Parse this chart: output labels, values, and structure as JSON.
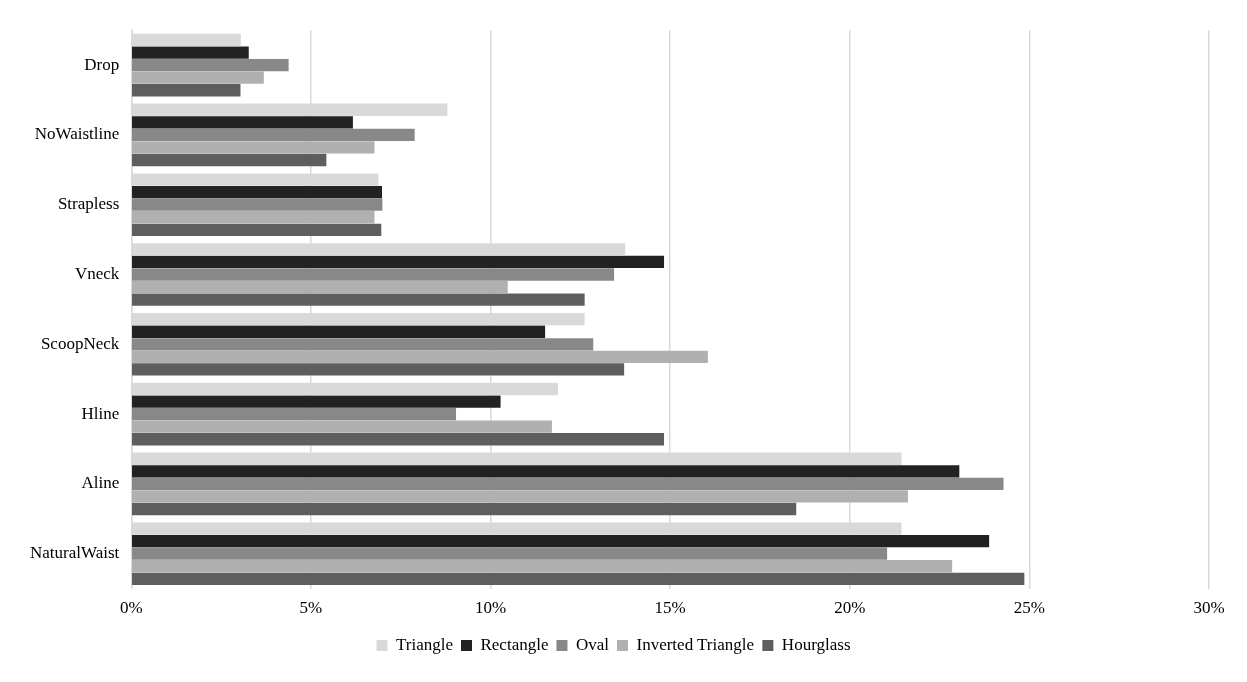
{
  "chart_data": {
    "type": "bar",
    "orientation": "horizontal",
    "categories": [
      "Drop",
      "NoWaistline",
      "Strapless",
      "Vneck",
      "ScoopNeck",
      "Hline",
      "Aline",
      "NaturalWaist"
    ],
    "series": [
      {
        "name": "Triangle",
        "color": "#d9d9d9",
        "values": [
          3.05,
          8.8,
          6.88,
          13.75,
          12.62,
          11.88,
          21.44,
          21.44
        ]
      },
      {
        "name": "Rectangle",
        "color": "#222222",
        "values": [
          3.27,
          6.17,
          6.98,
          14.83,
          11.52,
          10.28,
          23.05,
          23.88
        ]
      },
      {
        "name": "Oval",
        "color": "#888888",
        "values": [
          4.38,
          7.89,
          6.99,
          13.44,
          12.86,
          9.04,
          24.28,
          21.04
        ]
      },
      {
        "name": "Inverted Triangle",
        "color": "#b0b0b0",
        "values": [
          3.69,
          6.77,
          6.77,
          10.48,
          16.05,
          11.71,
          21.62,
          22.85
        ]
      },
      {
        "name": "Hourglass",
        "color": "#5e5e5e",
        "values": [
          3.04,
          5.43,
          6.96,
          12.62,
          13.72,
          14.83,
          18.51,
          24.86
        ]
      }
    ],
    "xlim": [
      0,
      30
    ],
    "xticks": [
      {
        "value": 0,
        "label": "0%"
      },
      {
        "value": 5,
        "label": "5%"
      },
      {
        "value": 10,
        "label": "10%"
      },
      {
        "value": 15,
        "label": "15%"
      },
      {
        "value": 20,
        "label": "20%"
      },
      {
        "value": 25,
        "label": "25%"
      },
      {
        "value": 30,
        "label": "30%"
      }
    ],
    "grid": "x",
    "legend": "bottom"
  }
}
